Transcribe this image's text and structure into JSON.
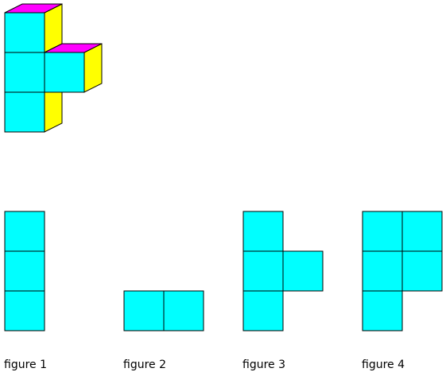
{
  "colors": {
    "front_face": "#00FFFF",
    "top_face": "#FF00FF",
    "side_face": "#FFFF00",
    "edge": "#000000",
    "background": "#FFFFFF"
  },
  "solid": {
    "cubes": [
      {
        "col": 0,
        "row": 0
      },
      {
        "col": 0,
        "row": 1
      },
      {
        "col": 0,
        "row": 2
      },
      {
        "col": 1,
        "row": 1
      }
    ]
  },
  "figures": [
    {
      "caption": "figure 1",
      "cells": [
        [
          0,
          0
        ],
        [
          0,
          1
        ],
        [
          0,
          2
        ]
      ]
    },
    {
      "caption": "figure 2",
      "cells": [
        [
          0,
          2
        ],
        [
          1,
          2
        ]
      ]
    },
    {
      "caption": "figure 3",
      "cells": [
        [
          0,
          0
        ],
        [
          0,
          1
        ],
        [
          0,
          2
        ],
        [
          1,
          1
        ]
      ]
    },
    {
      "caption": "figure 4",
      "cells": [
        [
          0,
          0
        ],
        [
          1,
          0
        ],
        [
          0,
          1
        ],
        [
          1,
          1
        ],
        [
          0,
          2
        ]
      ]
    }
  ]
}
